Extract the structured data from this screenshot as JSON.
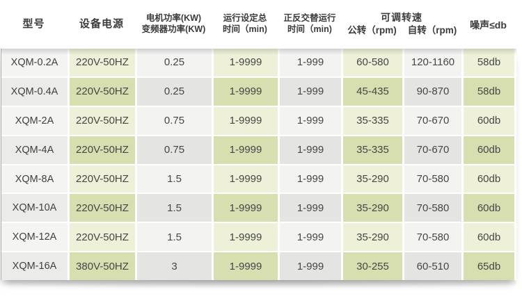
{
  "table": {
    "headers": {
      "model": "型号",
      "power_supply": "设备电源",
      "motor_power_line1": "电机功率(KW)",
      "motor_power_line2": "变频器功率(KW)",
      "run_time_line1": "运行设定总",
      "run_time_line2": "时间（min)",
      "alt_run_line1": "正反交替运行",
      "alt_run_line2": "时间（min)",
      "adjustable_speed": "可调转速",
      "revolution": "公转（rpm)",
      "rotation": "自转（rpm)",
      "noise": "噪声≤db"
    },
    "rows": [
      {
        "model": "XQM-0.2A",
        "power": "220V-50HZ",
        "kw": "0.25",
        "run": "1-9999",
        "alt": "1-999",
        "rev": "60-580",
        "rot": "120-1160",
        "noise": "58db"
      },
      {
        "model": "XQM-0.4A",
        "power": "220V-50HZ",
        "kw": "0.25",
        "run": "1-9999",
        "alt": "1-999",
        "rev": "45-435",
        "rot": "90-870",
        "noise": "58db"
      },
      {
        "model": "XQM-2A",
        "power": "220V-50HZ",
        "kw": "0.75",
        "run": "1-9999",
        "alt": "1-999",
        "rev": "35-335",
        "rot": "70-670",
        "noise": "60db"
      },
      {
        "model": "XQM-4A",
        "power": "220V-50HZ",
        "kw": "0.75",
        "run": "1-9999",
        "alt": "1-999",
        "rev": "35-335",
        "rot": "70-670",
        "noise": "60db"
      },
      {
        "model": "XQM-8A",
        "power": "220V-50HZ",
        "kw": "1.5",
        "run": "1-9999",
        "alt": "1-999",
        "rev": "35-290",
        "rot": "70-580",
        "noise": "60db"
      },
      {
        "model": "XQM-10A",
        "power": "220V-50HZ",
        "kw": "1.5",
        "run": "1-9999",
        "alt": "1-999",
        "rev": "35-290",
        "rot": "70-580",
        "noise": "60db"
      },
      {
        "model": "XQM-12A",
        "power": "220V-50HZ",
        "kw": "1.5",
        "run": "1-9999",
        "alt": "1-999",
        "rev": "35-290",
        "rot": "70-580",
        "noise": "60db"
      },
      {
        "model": "XQM-16A",
        "power": "380V-50HZ",
        "kw": "3",
        "run": "1-9999",
        "alt": "1-999",
        "rev": "30-255",
        "rot": "60-510",
        "noise": "65db"
      }
    ]
  },
  "colors": {
    "green_light": "#eef1d7",
    "green_dark": "#d7deb0",
    "gray_light": "#f3f3f1",
    "gray_dark": "#e4e4e2",
    "header_text": "#3b3b3b",
    "body_text": "#464646"
  }
}
